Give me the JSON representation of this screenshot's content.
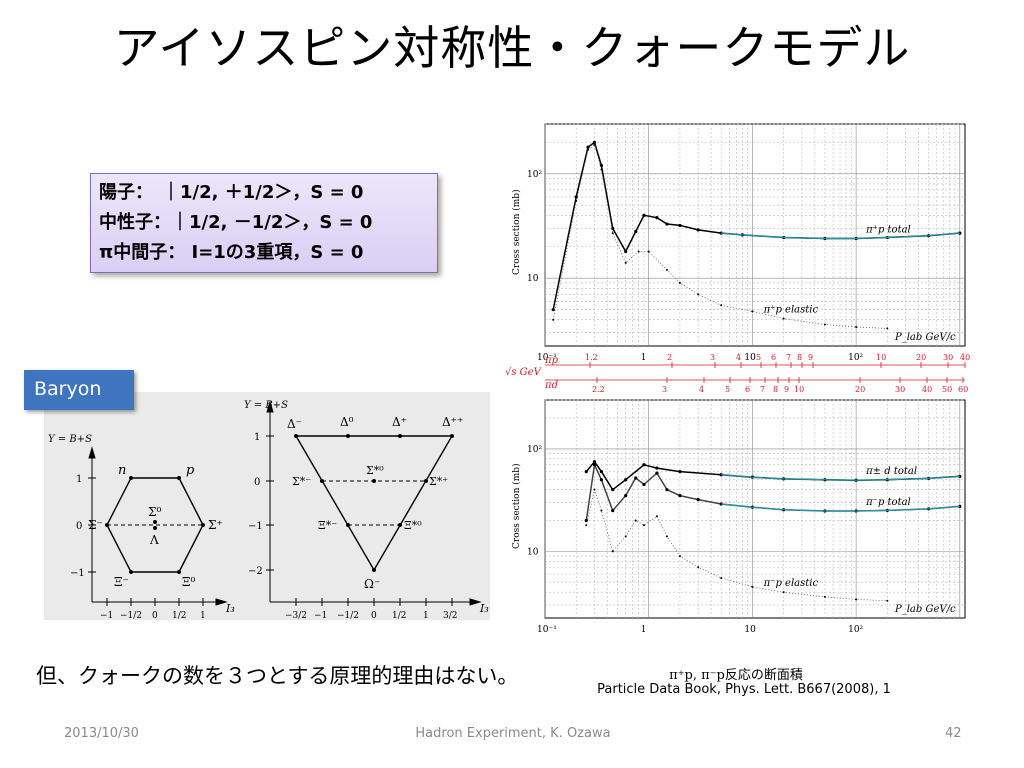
{
  "slide": {
    "title": "アイソスピン対称性・クォークモデル",
    "state_box": {
      "lines": [
        "陽子：　｜1/2, ＋1/2＞，S = 0",
        "中性子：｜1/2, －1/2＞，S = 0",
        "π中間子：  I=1の3重項，S = 0"
      ]
    },
    "baryon_label": "Baryon",
    "note": "但、クォークの数を３つとする原理的理由はない。",
    "caption_line1": "π⁺p, π⁻p反応の断面積",
    "caption_line2": "Particle Data Book, Phys. Lett. B667(2008), 1",
    "footer": {
      "date": "2013/10/30",
      "center": "Hadron Experiment, K. Ozawa",
      "page": "42"
    }
  },
  "octet": {
    "ylabel": "Y = B+S",
    "xlabel": "I₃",
    "xticks": [
      "−1",
      "−1/2",
      "0",
      "1/2",
      "1"
    ],
    "yticks": [
      "1",
      "0",
      "−1"
    ],
    "labels": {
      "n": "n",
      "p": "p",
      "sigma_minus": "Σ⁻",
      "sigma_plus": "Σ⁺",
      "sigma_zero": "Σ⁰",
      "lambda": "Λ",
      "xi_minus": "Ξ⁻",
      "xi_zero": "Ξ⁰"
    }
  },
  "decuplet": {
    "ylabel": "Y = B+S",
    "xlabel": "I₃",
    "xticks": [
      "−3/2",
      "−1",
      "−1/2",
      "0",
      "1/2",
      "1",
      "3/2"
    ],
    "yticks": [
      "1",
      "0",
      "−1",
      "−2"
    ],
    "labels": {
      "d_minus": "Δ⁻",
      "d_zero": "Δ⁰",
      "d_plus": "Δ⁺",
      "d_plusplus": "Δ⁺⁺",
      "s_minus": "Σ*⁻",
      "s_zero": "Σ*⁰",
      "s_plus": "Σ*⁺",
      "x_minus": "Ξ*⁻",
      "x_zero": "Ξ*⁰",
      "omega": "Ω⁻"
    }
  },
  "chart_data": [
    {
      "type": "scatter",
      "scale": "log-log",
      "ylabel": "Cross section (mb)",
      "xlabel": "P_lab GeV/c",
      "xticks": [
        "10⁻¹",
        "1",
        "10",
        "10²"
      ],
      "yticks": [
        "10²",
        "10"
      ],
      "series": [
        {
          "name": "π⁺p total",
          "x": [
            0.12,
            0.2,
            0.26,
            0.3,
            0.35,
            0.45,
            0.6,
            0.75,
            0.9,
            1.2,
            1.5,
            2,
            3,
            5,
            8,
            20,
            50,
            100,
            200,
            500,
            1000
          ],
          "y": [
            5,
            60,
            180,
            200,
            120,
            30,
            18,
            28,
            40,
            38,
            33,
            32,
            29,
            27,
            26,
            24.5,
            24,
            24,
            24.5,
            25.5,
            27
          ]
        },
        {
          "name": "π⁺p elastic",
          "x": [
            0.12,
            0.2,
            0.26,
            0.3,
            0.35,
            0.45,
            0.6,
            0.8,
            1,
            1.5,
            2,
            3,
            5,
            10,
            20,
            50,
            100,
            200
          ],
          "y": [
            4,
            55,
            170,
            190,
            110,
            27,
            14,
            18,
            18,
            12,
            9,
            7,
            5.5,
            4.8,
            4.1,
            3.6,
            3.4,
            3.3
          ]
        }
      ]
    },
    {
      "type": "scatter",
      "scale": "log-log",
      "ylabel": "Cross section (mb)",
      "xlabel": "P_lab GeV/c",
      "xticks": [
        "10⁻¹",
        "1",
        "10",
        "10²"
      ],
      "yticks": [
        "10²",
        "10"
      ],
      "series": [
        {
          "name": "π± d total",
          "x": [
            0.25,
            0.3,
            0.35,
            0.45,
            0.6,
            0.9,
            1.2,
            2,
            5,
            10,
            20,
            50,
            100,
            200,
            500,
            1000
          ],
          "y": [
            60,
            75,
            60,
            40,
            50,
            70,
            65,
            60,
            56,
            53,
            51,
            50,
            49.5,
            50,
            51.5,
            54
          ]
        },
        {
          "name": "π⁻p total",
          "x": [
            0.25,
            0.3,
            0.35,
            0.45,
            0.6,
            0.75,
            0.9,
            1.2,
            1.5,
            2,
            3,
            5,
            10,
            20,
            50,
            100,
            200,
            500,
            1000
          ],
          "y": [
            20,
            70,
            50,
            25,
            35,
            52,
            45,
            58,
            40,
            35,
            32,
            29,
            27,
            25.5,
            24.8,
            24.8,
            25.1,
            26,
            27.5
          ]
        },
        {
          "name": "π⁻p elastic",
          "x": [
            0.25,
            0.3,
            0.35,
            0.45,
            0.6,
            0.75,
            0.9,
            1.2,
            1.5,
            2,
            3,
            5,
            10,
            20,
            50,
            100,
            200
          ],
          "y": [
            18,
            40,
            25,
            10,
            14,
            20,
            18,
            22,
            14,
            9,
            7,
            5.5,
            4.5,
            4,
            3.6,
            3.4,
            3.3
          ]
        }
      ]
    }
  ],
  "sqrt_s_axis": {
    "label": "√s GeV",
    "pi_p_label": "πp",
    "pi_d_label": "πd",
    "pi_p_ticks": [
      "1.2",
      "2",
      "3",
      "4",
      "5",
      "6",
      "7",
      "8",
      "9",
      "10",
      "20",
      "30",
      "40"
    ],
    "pi_d_ticks": [
      "2.2",
      "3",
      "4",
      "5",
      "6",
      "7",
      "8",
      "9",
      "10",
      "20",
      "30",
      "40",
      "50",
      "60"
    ],
    "color": "#d0202a"
  }
}
